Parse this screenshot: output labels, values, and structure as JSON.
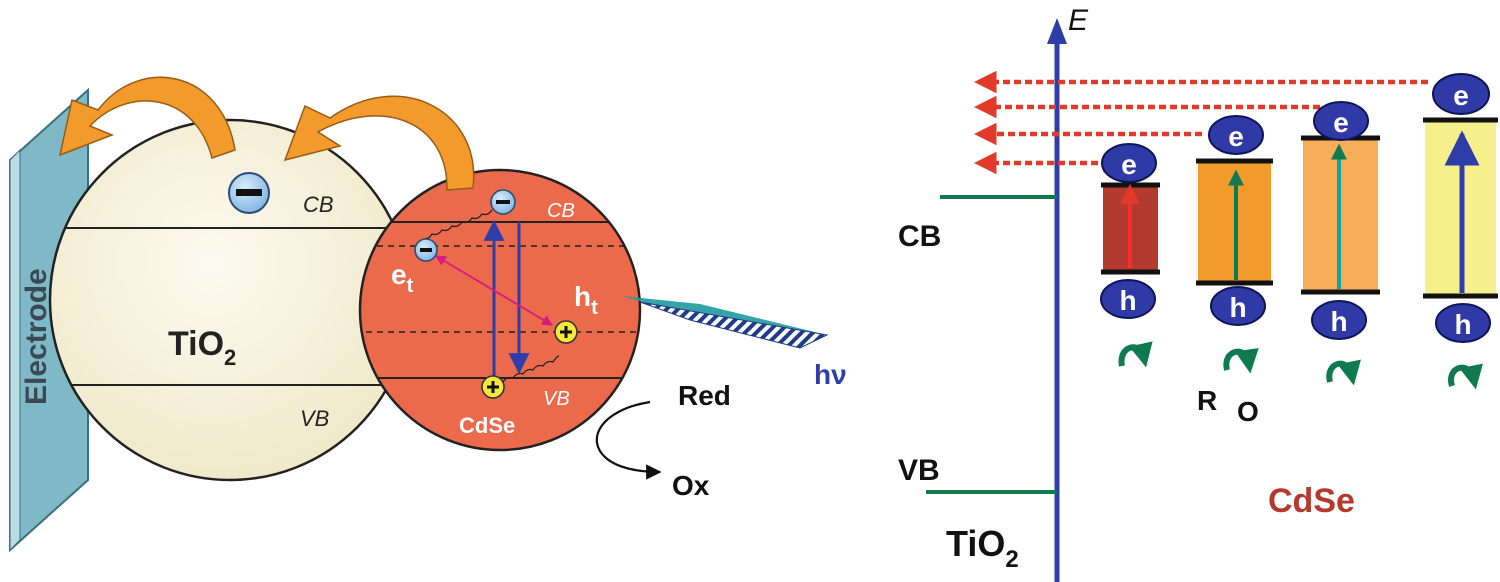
{
  "left_panel": {
    "electrode_label": "Electrode",
    "tio2": {
      "label": "TiO",
      "subscript": "2",
      "cb_label": "CB",
      "vb_label": "VB"
    },
    "cdse": {
      "label": "CdSe",
      "cb_label": "CB",
      "vb_label": "VB",
      "trapped_electron": {
        "letter": "e",
        "sub": "t"
      },
      "trapped_hole": {
        "letter": "h",
        "sub": "t"
      }
    },
    "light_label": "hν",
    "redox": {
      "red_label": "Red",
      "ox_label": "Ox"
    }
  },
  "right_panel": {
    "energy_axis_label": "E",
    "tio2_cb_label": "CB",
    "tio2_vb_label": "VB",
    "tio2": {
      "label": "TiO",
      "subscript": "2"
    },
    "cdse_label": "CdSe",
    "electron_symbol": "e",
    "hole_symbol": "h",
    "redox_r": "R",
    "redox_o": "O",
    "colors": {
      "axis": "#2e3da8",
      "tio2_level": "#0f7a4f",
      "injection_arrow": "#e23a2a",
      "quantum_dot_1": "#b33a2e",
      "quantum_dot_2": "#f39a2c",
      "quantum_dot_3": "#f7ae58",
      "quantum_dot_4": "#f5ef8c",
      "carrier_badge": "#2f3aa6",
      "cdse_text": "#b5392c"
    }
  }
}
